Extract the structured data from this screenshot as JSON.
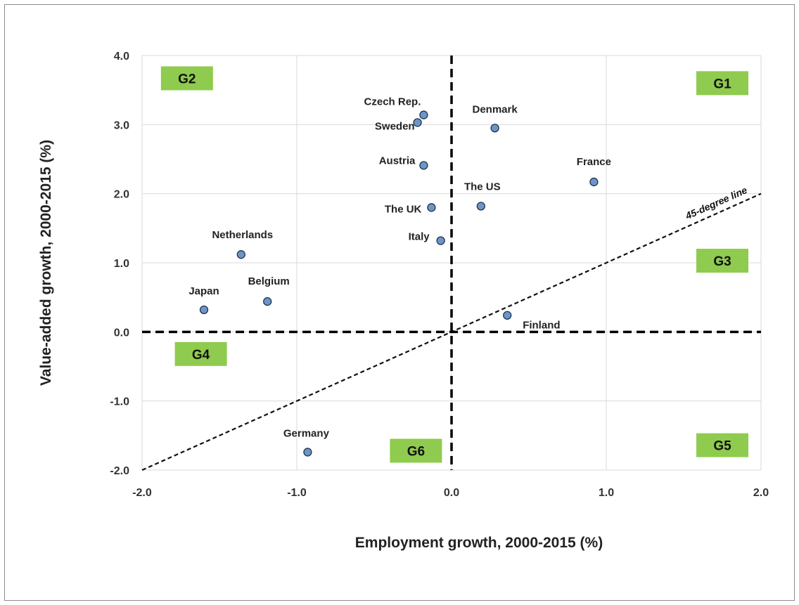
{
  "chart_data": {
    "type": "scatter",
    "title": "",
    "xlabel": "Employment growth, 2000-2015 (%)",
    "ylabel": "Value-added growth, 2000-2015 (%)",
    "xlim": [
      -2.0,
      2.0
    ],
    "ylim": [
      -2.0,
      4.0
    ],
    "x_ticks": [
      "-2.0",
      "-1.0",
      "0.0",
      "1.0",
      "2.0"
    ],
    "y_ticks": [
      "-2.0",
      "-1.0",
      "0.0",
      "1.0",
      "2.0",
      "3.0",
      "4.0"
    ],
    "grid": true,
    "marker_color": "#6f95c8",
    "marker_edge_color": "#1f3552",
    "group_box_color": "#8fcb4e",
    "points": [
      {
        "label": "Czech Rep.",
        "x": -0.18,
        "y": 3.14
      },
      {
        "label": "Sweden",
        "x": -0.22,
        "y": 3.03
      },
      {
        "label": "Denmark",
        "x": 0.28,
        "y": 2.95
      },
      {
        "label": "Austria",
        "x": -0.18,
        "y": 2.41
      },
      {
        "label": "France",
        "x": 0.92,
        "y": 2.17
      },
      {
        "label": "The US",
        "x": 0.19,
        "y": 1.82
      },
      {
        "label": "The UK",
        "x": -0.13,
        "y": 1.8
      },
      {
        "label": "Italy",
        "x": -0.07,
        "y": 1.32
      },
      {
        "label": "Netherlands",
        "x": -1.36,
        "y": 1.12
      },
      {
        "label": "Belgium",
        "x": -1.19,
        "y": 0.44
      },
      {
        "label": "Japan",
        "x": -1.6,
        "y": 0.32
      },
      {
        "label": "Finland",
        "x": 0.36,
        "y": 0.24
      },
      {
        "label": "Germany",
        "x": -0.93,
        "y": -1.74
      }
    ],
    "reference_lines": {
      "diagonal_label": "45-degree line",
      "diagonal_slope": 1,
      "vertical_x": 0,
      "horizontal_y": 0
    },
    "groups": [
      {
        "label": "G1",
        "x": 1.75,
        "y": 3.6
      },
      {
        "label": "G2",
        "x": -1.71,
        "y": 3.67
      },
      {
        "label": "G3",
        "x": 1.75,
        "y": 1.03
      },
      {
        "label": "G4",
        "x": -1.62,
        "y": -0.32
      },
      {
        "label": "G5",
        "x": 1.75,
        "y": -1.64
      },
      {
        "label": "G6",
        "x": -0.23,
        "y": -1.72
      }
    ]
  }
}
